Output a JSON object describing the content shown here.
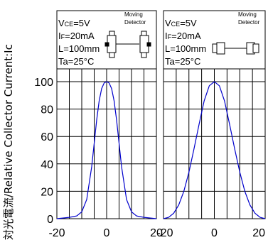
{
  "chart_data": {
    "type": "line",
    "ylabel": "対光電流/Relative Collector Current:Ic",
    "ylim": [
      0,
      100
    ],
    "yticks": [
      0,
      20,
      40,
      60,
      80,
      100
    ],
    "grid": true,
    "colors": {
      "line": "#0000cc",
      "grid": "#000000"
    },
    "panels": [
      {
        "name": "left",
        "xlim": [
          -20,
          20
        ],
        "xticks": [
          "-20",
          "0",
          "20"
        ],
        "conditions": {
          "vce_prefix": "V",
          "vce_sub": "CE",
          "vce_value": "=5V",
          "if_prefix": "I",
          "if_sub": "F",
          "if_value": "=20mA",
          "distance": "L=100mm",
          "temperature": "Ta=25°C",
          "moving_label_1": "Moving",
          "moving_label_2": "Detector"
        },
        "icon": "vertical-move-diagram-icon",
        "x": [
          -20,
          -15,
          -12,
          -10,
          -8,
          -6,
          -5,
          -4,
          -3,
          -2,
          -1,
          0,
          1,
          2,
          3,
          4,
          5,
          6,
          8,
          10,
          12,
          15,
          20
        ],
        "y": [
          0,
          1,
          2,
          5,
          14,
          38,
          55,
          72,
          86,
          95,
          99,
          100,
          99,
          95,
          86,
          72,
          55,
          38,
          14,
          5,
          2,
          1,
          0
        ]
      },
      {
        "name": "right",
        "xlim": [
          -20,
          20
        ],
        "xticks": [
          "-20",
          "0",
          "20"
        ],
        "conditions": {
          "vce_prefix": "V",
          "vce_sub": "CE",
          "vce_value": "=5V",
          "if_prefix": "I",
          "if_sub": "F",
          "if_value": "=20mA",
          "distance": "L=100mm",
          "temperature": "Ta=25°C",
          "moving_label_1": "Moving",
          "moving_label_2": "Detector"
        },
        "icon": "horizontal-move-diagram-icon",
        "x": [
          -20,
          -18,
          -16,
          -14,
          -12,
          -10,
          -8,
          -6,
          -4,
          -2,
          0,
          2,
          4,
          6,
          8,
          10,
          12,
          14,
          16,
          18,
          20
        ],
        "y": [
          0,
          1,
          4,
          10,
          20,
          34,
          51,
          69,
          86,
          97,
          100,
          97,
          86,
          69,
          51,
          34,
          20,
          10,
          4,
          1,
          0
        ]
      }
    ]
  }
}
